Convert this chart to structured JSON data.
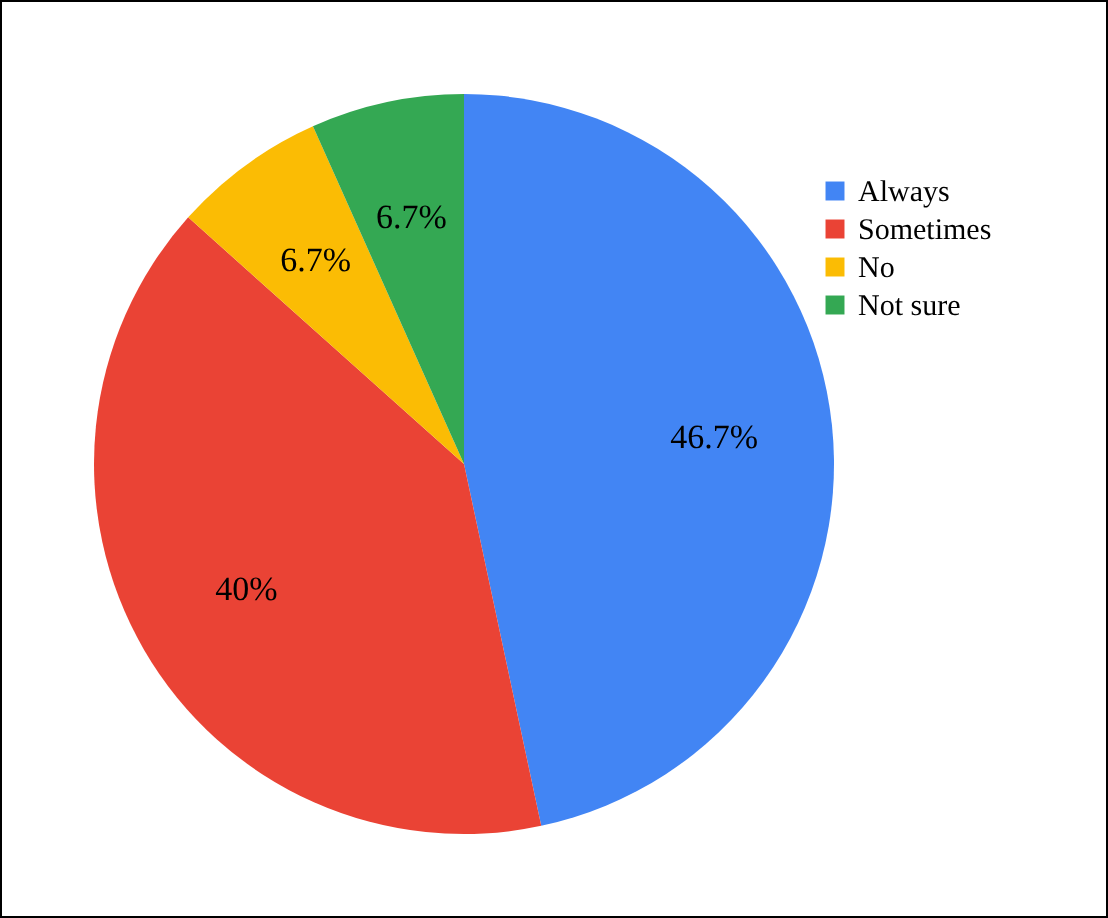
{
  "chart_data": {
    "type": "pie",
    "categories": [
      "Always",
      "Sometimes",
      "No",
      "Not sure"
    ],
    "values": [
      46.7,
      40,
      6.7,
      6.7
    ],
    "colors": [
      "#4285f4",
      "#ea4335",
      "#fbbc04",
      "#34a853"
    ],
    "value_labels": [
      "46.7%",
      "40%",
      "6.7%",
      "6.7%"
    ],
    "legend": "top right"
  }
}
